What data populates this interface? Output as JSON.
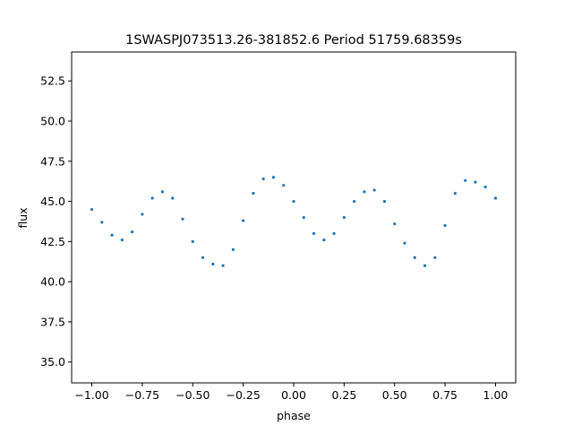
{
  "chart_data": {
    "type": "scatter",
    "title": "1SWASPJ073513.26-381852.6 Period 51759.68359s",
    "xlabel": "phase",
    "ylabel": "flux",
    "xlim": [
      -1.1,
      1.1
    ],
    "ylim": [
      33.7,
      54.3
    ],
    "xticks": [
      -1.0,
      -0.75,
      -0.5,
      -0.25,
      0.0,
      0.25,
      0.5,
      0.75,
      1.0
    ],
    "xtick_labels": [
      "−1.00",
      "−0.75",
      "−0.50",
      "−0.25",
      "0.00",
      "0.25",
      "0.50",
      "0.75",
      "1.00"
    ],
    "yticks": [
      35.0,
      37.5,
      40.0,
      42.5,
      45.0,
      47.5,
      50.0,
      52.5
    ],
    "ytick_labels": [
      "35.0",
      "37.5",
      "40.0",
      "42.5",
      "45.0",
      "47.5",
      "50.0",
      "52.5"
    ],
    "grid": false,
    "marker_color": "#1f77b4",
    "series": [
      {
        "x": [
          -1.0,
          -0.95,
          -0.9,
          -0.85,
          -0.8,
          -0.75,
          -0.7,
          -0.65,
          -0.6,
          -0.55,
          -0.5,
          -0.45,
          -0.4,
          -0.35,
          -0.3,
          -0.25,
          -0.2,
          -0.15,
          -0.1,
          -0.05,
          0.0,
          0.05,
          0.1,
          0.15,
          0.2,
          0.25,
          0.3,
          0.35,
          0.4,
          0.45,
          0.5,
          0.55,
          0.6,
          0.65,
          0.7,
          0.75,
          0.8,
          0.85,
          0.9,
          0.95,
          1.0
        ],
        "y": [
          44.5,
          43.7,
          42.9,
          42.6,
          43.1,
          44.2,
          45.2,
          45.6,
          45.2,
          43.9,
          42.5,
          41.5,
          41.1,
          41.0,
          42.0,
          43.8,
          45.5,
          46.4,
          46.5,
          46.0,
          45.0,
          44.0,
          43.0,
          42.6,
          43.0,
          44.0,
          45.0,
          45.6,
          45.7,
          45.0,
          43.6,
          42.4,
          41.5,
          41.0,
          41.5,
          43.5,
          45.5,
          46.3,
          46.2,
          45.9,
          45.2
        ]
      }
    ]
  }
}
